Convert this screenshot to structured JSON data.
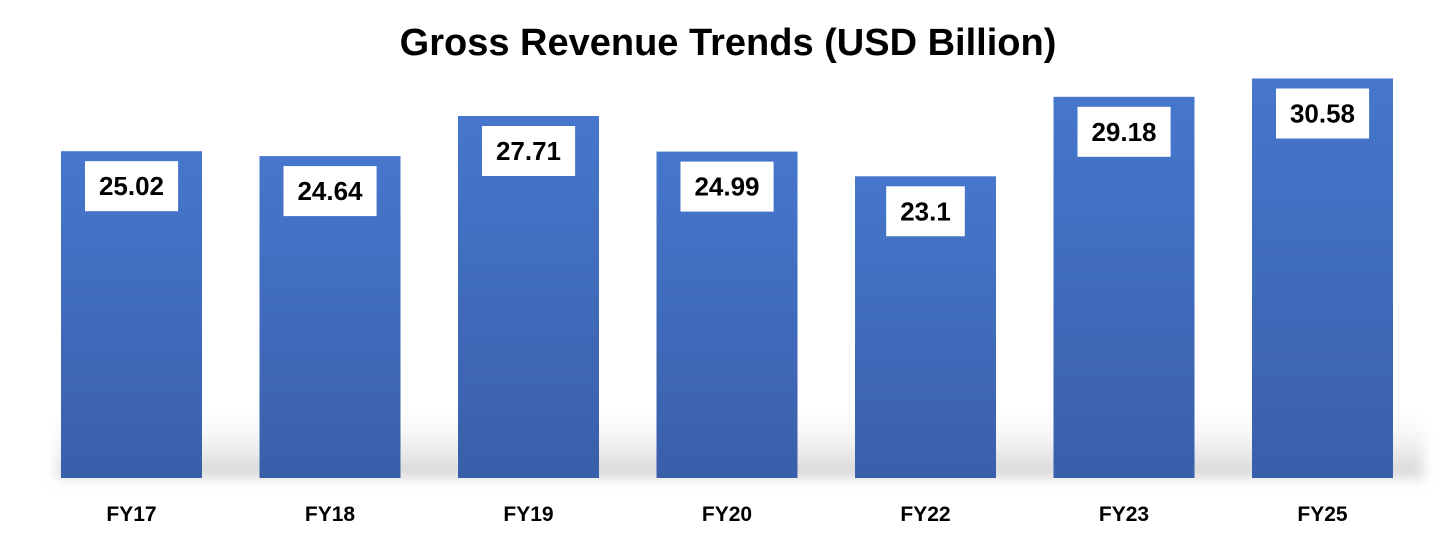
{
  "chart_data": {
    "type": "bar",
    "title": "Gross Revenue Trends (USD Billion)",
    "categories": [
      "FY17",
      "FY18",
      "FY19",
      "FY20",
      "FY22",
      "FY23",
      "FY25"
    ],
    "values": [
      25.02,
      24.64,
      27.71,
      24.99,
      23.1,
      29.18,
      30.58
    ],
    "data_labels": [
      "25.02",
      "24.64",
      "27.71",
      "24.99",
      "23.1",
      "29.18",
      "30.58"
    ],
    "xlabel": "",
    "ylabel": "",
    "ylim": [
      0,
      32
    ],
    "grid": false,
    "legend": "none",
    "colors": {
      "bar_top": "#4677CC",
      "bar_bottom": "#3A5FAA",
      "label_box": "#FFFFFF",
      "shadow": "#CFCFCF"
    }
  }
}
